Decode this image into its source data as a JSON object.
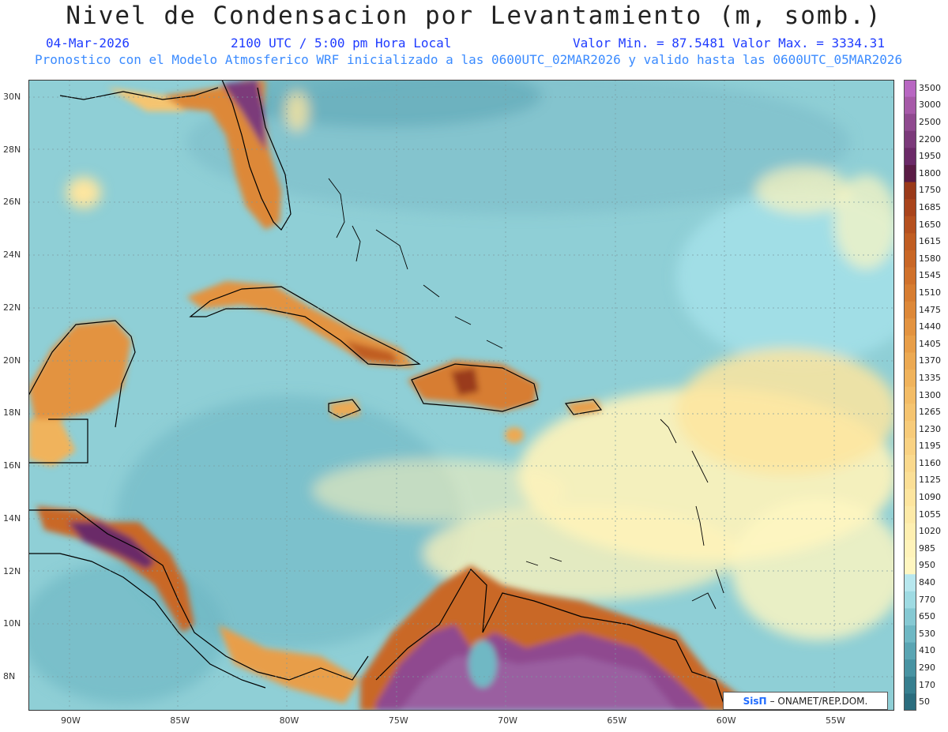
{
  "header": {
    "title": "Nivel de Condensacion por Levantamiento (m, somb.)",
    "date": "04-Mar-2026",
    "time": "2100 UTC / 5:00 pm Hora Local",
    "minmax": "Valor Min. = 87.5481   Valor Max. = 3334.31",
    "model_line": "Pronostico con el Modelo Atmosferico WRF inicializado a las 0600UTC_02MAR2026 y valido hasta las  0600UTC_05MAR2026"
  },
  "axes": {
    "lat_labels": [
      "30N",
      "28N",
      "26N",
      "24N",
      "22N",
      "20N",
      "18N",
      "16N",
      "14N",
      "12N",
      "10N",
      "8N"
    ],
    "lon_labels": [
      "90W",
      "85W",
      "80W",
      "75W",
      "70W",
      "65W",
      "60W",
      "55W"
    ]
  },
  "colorbar": {
    "levels": [
      "3500",
      "3000",
      "2500",
      "2200",
      "1950",
      "1800",
      "1750",
      "1685",
      "1650",
      "1615",
      "1580",
      "1545",
      "1510",
      "1475",
      "1440",
      "1405",
      "1370",
      "1335",
      "1300",
      "1265",
      "1230",
      "1195",
      "1160",
      "1125",
      "1090",
      "1055",
      "1020",
      "985",
      "950",
      "840",
      "770",
      "650",
      "530",
      "410",
      "290",
      "170",
      "50"
    ],
    "colors": [
      "#b867c2",
      "#a65aa8",
      "#8f4a8f",
      "#7b3a7a",
      "#6b2a68",
      "#5a1c45",
      "#9a3a1a",
      "#a9441c",
      "#b5501f",
      "#c05d22",
      "#c96726",
      "#d0712b",
      "#d77d31",
      "#dd8838",
      "#e39340",
      "#e89e48",
      "#eca952",
      "#f0b35c",
      "#f3bc66",
      "#f5c470",
      "#f7cb7a",
      "#f9d283",
      "#fad98d",
      "#fbdf96",
      "#fde59f",
      "#fdeaa8",
      "#feefb1",
      "#fff3ba",
      "#fff6c0",
      "#b7e7ee",
      "#9fdbe3",
      "#86c9d3",
      "#6fb8c4",
      "#5aa5b3",
      "#4893a2",
      "#377f8f",
      "#2b6d7e"
    ]
  },
  "credit": {
    "sis": "SisΠ",
    "org": "– ONAMET/REP.DOM."
  }
}
